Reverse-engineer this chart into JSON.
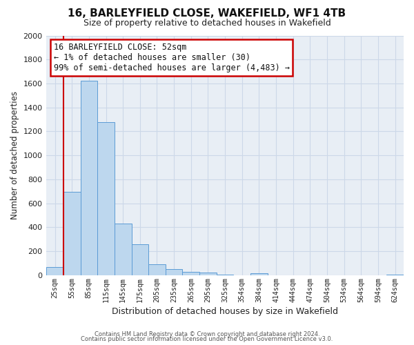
{
  "title": "16, BARLEYFIELD CLOSE, WAKEFIELD, WF1 4TB",
  "subtitle": "Size of property relative to detached houses in Wakefield",
  "xlabel": "Distribution of detached houses by size in Wakefield",
  "ylabel": "Number of detached properties",
  "bar_labels": [
    "25sqm",
    "55sqm",
    "85sqm",
    "115sqm",
    "145sqm",
    "175sqm",
    "205sqm",
    "235sqm",
    "265sqm",
    "295sqm",
    "325sqm",
    "354sqm",
    "384sqm",
    "414sqm",
    "444sqm",
    "474sqm",
    "504sqm",
    "534sqm",
    "564sqm",
    "594sqm",
    "624sqm"
  ],
  "bar_values": [
    65,
    695,
    1625,
    1275,
    430,
    255,
    90,
    50,
    30,
    20,
    5,
    0,
    15,
    0,
    0,
    0,
    0,
    0,
    0,
    0,
    5
  ],
  "bar_color": "#bdd7ee",
  "bar_edge_color": "#5b9bd5",
  "ylim": [
    0,
    2000
  ],
  "yticks": [
    0,
    200,
    400,
    600,
    800,
    1000,
    1200,
    1400,
    1600,
    1800,
    2000
  ],
  "property_line_color": "#cc0000",
  "annotation_box_text": "16 BARLEYFIELD CLOSE: 52sqm\n← 1% of detached houses are smaller (30)\n99% of semi-detached houses are larger (4,483) →",
  "annotation_box_color": "#cc0000",
  "footer_line1": "Contains HM Land Registry data © Crown copyright and database right 2024.",
  "footer_line2": "Contains public sector information licensed under the Open Government Licence v3.0.",
  "background_color": "#ffffff",
  "grid_color": "#ccd8e8",
  "axes_bg_color": "#e8eef5"
}
